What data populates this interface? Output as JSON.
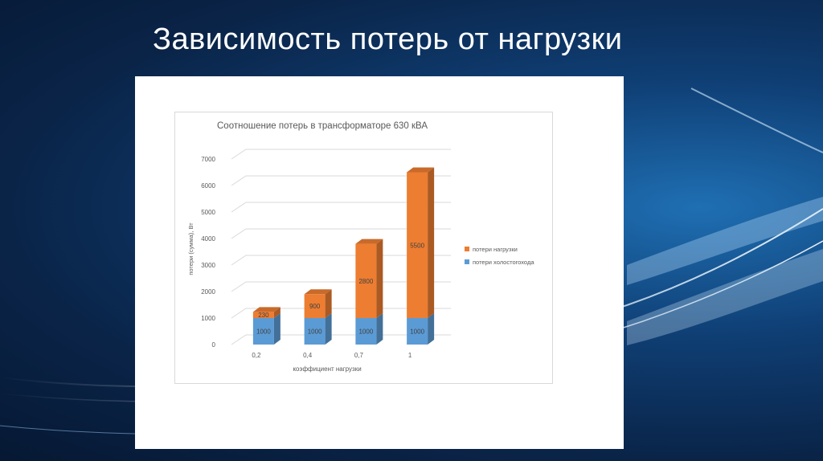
{
  "slide": {
    "title": "Зависимость потерь от нагрузки"
  },
  "chart_data": {
    "type": "bar",
    "stacked": true,
    "three_d": true,
    "title": "Соотношение потерь в трансформаторе 630 кВА",
    "xlabel": "коэффициент нагрузки",
    "ylabel": "потери (сумма), Вт",
    "categories": [
      "0,2",
      "0,4",
      "0,7",
      "1"
    ],
    "ylim": [
      0,
      7000
    ],
    "yticks": [
      0,
      1000,
      2000,
      3000,
      4000,
      5000,
      6000,
      7000
    ],
    "legend_position": "right",
    "series": [
      {
        "name": "потери холостого хода",
        "values": [
          1000,
          1000,
          1000,
          1000
        ],
        "color": "#5b9bd5"
      },
      {
        "name": "потери нагрузки",
        "values": [
          230,
          900,
          2800,
          5500
        ],
        "color": "#ed7d31"
      }
    ],
    "legend": [
      {
        "name": "потери нагрузки",
        "color": "#ed7d31"
      },
      {
        "name": "потери холостогохода",
        "color": "#5b9bd5"
      }
    ]
  }
}
